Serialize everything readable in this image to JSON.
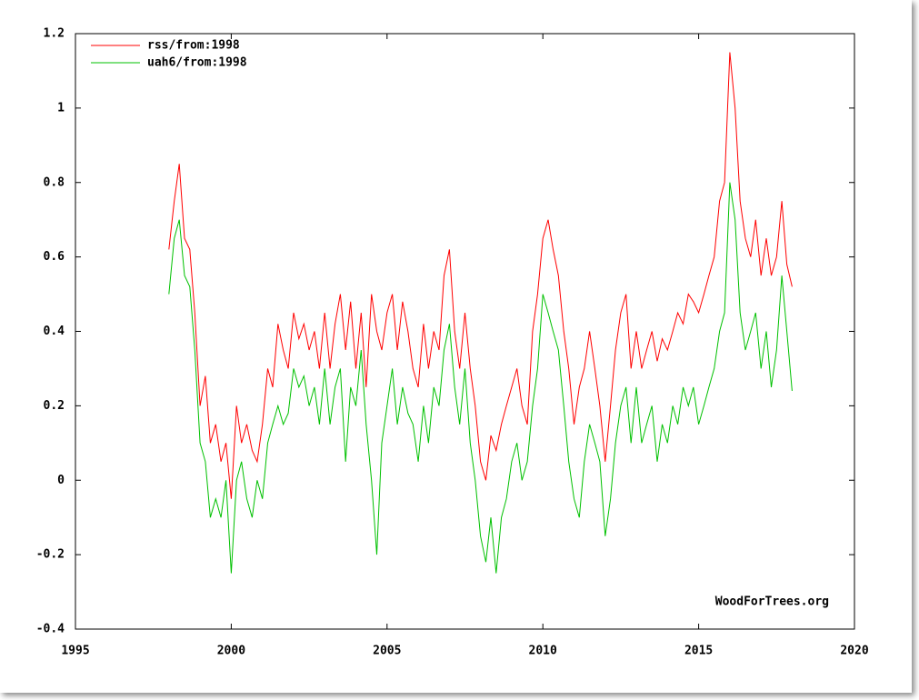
{
  "chart_data": {
    "type": "line",
    "annotation": "WoodForTrees.org",
    "x": [
      1998,
      1998.17,
      1998.33,
      1998.5,
      1998.67,
      1998.83,
      1999,
      1999.17,
      1999.33,
      1999.5,
      1999.67,
      1999.83,
      2000,
      2000.17,
      2000.33,
      2000.5,
      2000.67,
      2000.83,
      2001,
      2001.17,
      2001.33,
      2001.5,
      2001.67,
      2001.83,
      2002,
      2002.17,
      2002.33,
      2002.5,
      2002.67,
      2002.83,
      2003,
      2003.17,
      2003.33,
      2003.5,
      2003.67,
      2003.83,
      2004,
      2004.17,
      2004.33,
      2004.5,
      2004.67,
      2004.83,
      2005,
      2005.17,
      2005.33,
      2005.5,
      2005.67,
      2005.83,
      2006,
      2006.17,
      2006.33,
      2006.5,
      2006.67,
      2006.83,
      2007,
      2007.17,
      2007.33,
      2007.5,
      2007.67,
      2007.83,
      2008,
      2008.17,
      2008.33,
      2008.5,
      2008.67,
      2008.83,
      2009,
      2009.17,
      2009.33,
      2009.5,
      2009.67,
      2009.83,
      2010,
      2010.17,
      2010.33,
      2010.5,
      2010.67,
      2010.83,
      2011,
      2011.17,
      2011.33,
      2011.5,
      2011.67,
      2011.83,
      2012,
      2012.17,
      2012.33,
      2012.5,
      2012.67,
      2012.83,
      2013,
      2013.17,
      2013.33,
      2013.5,
      2013.67,
      2013.83,
      2014,
      2014.17,
      2014.33,
      2014.5,
      2014.67,
      2014.83,
      2015,
      2015.17,
      2015.33,
      2015.5,
      2015.67,
      2015.83,
      2016,
      2016.17,
      2016.33,
      2016.5,
      2016.67,
      2016.83,
      2017,
      2017.17,
      2017.33,
      2017.5,
      2017.67,
      2017.83,
      2018
    ],
    "series": [
      {
        "name": "rss/from:1998",
        "color": "#ff0000",
        "values": [
          0.62,
          0.75,
          0.85,
          0.65,
          0.62,
          0.45,
          0.2,
          0.28,
          0.1,
          0.15,
          0.05,
          0.1,
          -0.05,
          0.2,
          0.1,
          0.15,
          0.08,
          0.05,
          0.15,
          0.3,
          0.25,
          0.42,
          0.35,
          0.3,
          0.45,
          0.38,
          0.42,
          0.35,
          0.4,
          0.3,
          0.45,
          0.3,
          0.42,
          0.5,
          0.35,
          0.48,
          0.3,
          0.45,
          0.25,
          0.5,
          0.4,
          0.35,
          0.45,
          0.5,
          0.35,
          0.48,
          0.4,
          0.3,
          0.25,
          0.42,
          0.3,
          0.4,
          0.35,
          0.55,
          0.62,
          0.4,
          0.3,
          0.45,
          0.3,
          0.2,
          0.05,
          0,
          0.12,
          0.08,
          0.15,
          0.2,
          0.25,
          0.3,
          0.2,
          0.15,
          0.4,
          0.5,
          0.65,
          0.7,
          0.62,
          0.55,
          0.4,
          0.3,
          0.15,
          0.25,
          0.3,
          0.4,
          0.3,
          0.2,
          0.05,
          0.2,
          0.35,
          0.45,
          0.5,
          0.3,
          0.4,
          0.3,
          0.35,
          0.4,
          0.32,
          0.38,
          0.35,
          0.4,
          0.45,
          0.42,
          0.5,
          0.48,
          0.45,
          0.5,
          0.55,
          0.6,
          0.75,
          0.8,
          1.15,
          1,
          0.75,
          0.65,
          0.6,
          0.7,
          0.55,
          0.65,
          0.55,
          0.6,
          0.75,
          0.58,
          0.52
        ]
      },
      {
        "name": "uah6/from:1998",
        "color": "#00c000",
        "values": [
          0.5,
          0.65,
          0.7,
          0.55,
          0.52,
          0.35,
          0.1,
          0.05,
          -0.1,
          -0.05,
          -0.1,
          0,
          -0.25,
          0,
          0.05,
          -0.05,
          -0.1,
          0,
          -0.05,
          0.1,
          0.15,
          0.2,
          0.15,
          0.18,
          0.3,
          0.25,
          0.28,
          0.2,
          0.25,
          0.15,
          0.3,
          0.15,
          0.25,
          0.3,
          0.05,
          0.25,
          0.2,
          0.35,
          0.15,
          0,
          -0.2,
          0.1,
          0.2,
          0.3,
          0.15,
          0.25,
          0.18,
          0.15,
          0.05,
          0.2,
          0.1,
          0.25,
          0.2,
          0.35,
          0.42,
          0.25,
          0.15,
          0.3,
          0.1,
          0,
          -0.15,
          -0.22,
          -0.1,
          -0.25,
          -0.1,
          -0.05,
          0.05,
          0.1,
          0,
          0.05,
          0.2,
          0.3,
          0.5,
          0.45,
          0.4,
          0.35,
          0.2,
          0.05,
          -0.05,
          -0.1,
          0.05,
          0.15,
          0.1,
          0.05,
          -0.15,
          -0.05,
          0.1,
          0.2,
          0.25,
          0.1,
          0.25,
          0.1,
          0.15,
          0.2,
          0.05,
          0.15,
          0.1,
          0.2,
          0.15,
          0.25,
          0.2,
          0.25,
          0.15,
          0.2,
          0.25,
          0.3,
          0.4,
          0.45,
          0.8,
          0.7,
          0.45,
          0.35,
          0.4,
          0.45,
          0.3,
          0.4,
          0.25,
          0.35,
          0.55,
          0.4,
          0.24
        ]
      }
    ],
    "xlim": [
      1995,
      2020
    ],
    "xticks": [
      1995,
      2000,
      2005,
      2010,
      2015,
      2020
    ],
    "ylim": [
      -0.4,
      1.2
    ],
    "yticks": [
      -0.4,
      -0.2,
      0,
      0.2,
      0.4,
      0.6,
      0.8,
      1,
      1.2
    ],
    "legend": "upper left"
  }
}
